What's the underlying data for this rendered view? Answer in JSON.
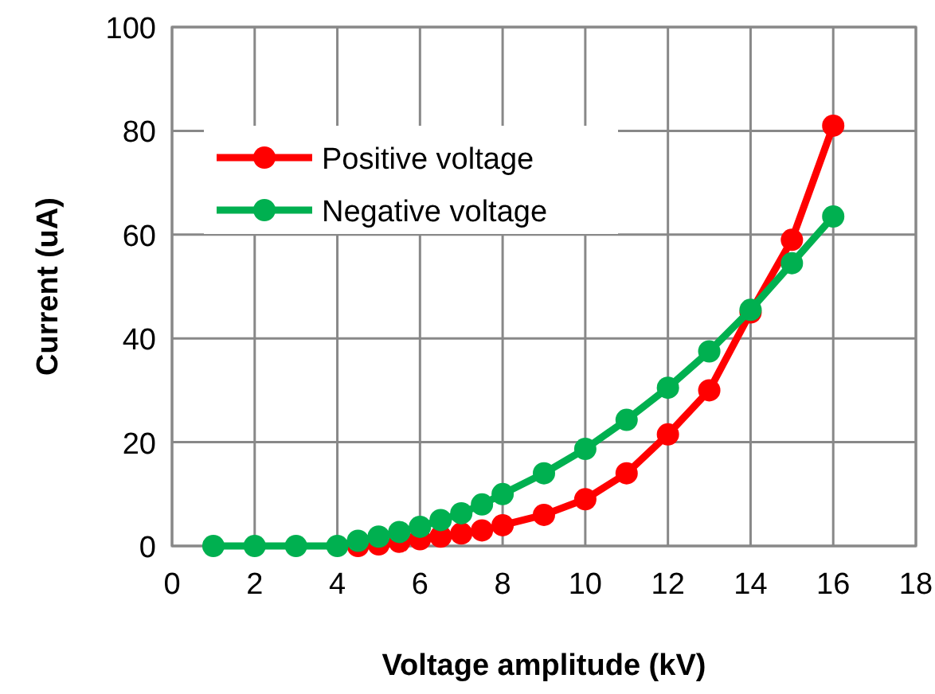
{
  "chart_data": {
    "type": "line",
    "xlabel": "Voltage amplitude (kV)",
    "ylabel": "Current (uA)",
    "xlim": [
      0,
      18
    ],
    "xticks": [
      0,
      2,
      4,
      6,
      8,
      10,
      12,
      14,
      16,
      18
    ],
    "ylim": [
      0,
      100
    ],
    "yticks": [
      0,
      20,
      40,
      60,
      80,
      100
    ],
    "grid": true,
    "legend": "top left",
    "marker": "circle",
    "line_style": "solid",
    "series": [
      {
        "name": "Positive voltage",
        "color": "#ff0000",
        "x": [
          4.5,
          5,
          5.5,
          6,
          6.5,
          7,
          7.5,
          8,
          9,
          10,
          11,
          12,
          13,
          14,
          15,
          16
        ],
        "values": [
          0,
          0.3,
          0.8,
          1.3,
          1.8,
          2.4,
          3,
          4,
          6,
          9,
          14,
          21.5,
          30,
          45,
          59,
          81
        ]
      },
      {
        "name": "Negative voltage",
        "color": "#00b050",
        "x": [
          1,
          2,
          3,
          4,
          4.5,
          5,
          5.5,
          6,
          6.5,
          7,
          7.5,
          8,
          9,
          10,
          11,
          12,
          13,
          14,
          15,
          16
        ],
        "values": [
          0,
          0,
          0,
          0,
          1,
          1.8,
          2.7,
          3.7,
          5,
          6.3,
          8,
          10,
          14,
          18.7,
          24.3,
          30.5,
          37.5,
          45.5,
          54.5,
          63.5
        ]
      }
    ]
  }
}
